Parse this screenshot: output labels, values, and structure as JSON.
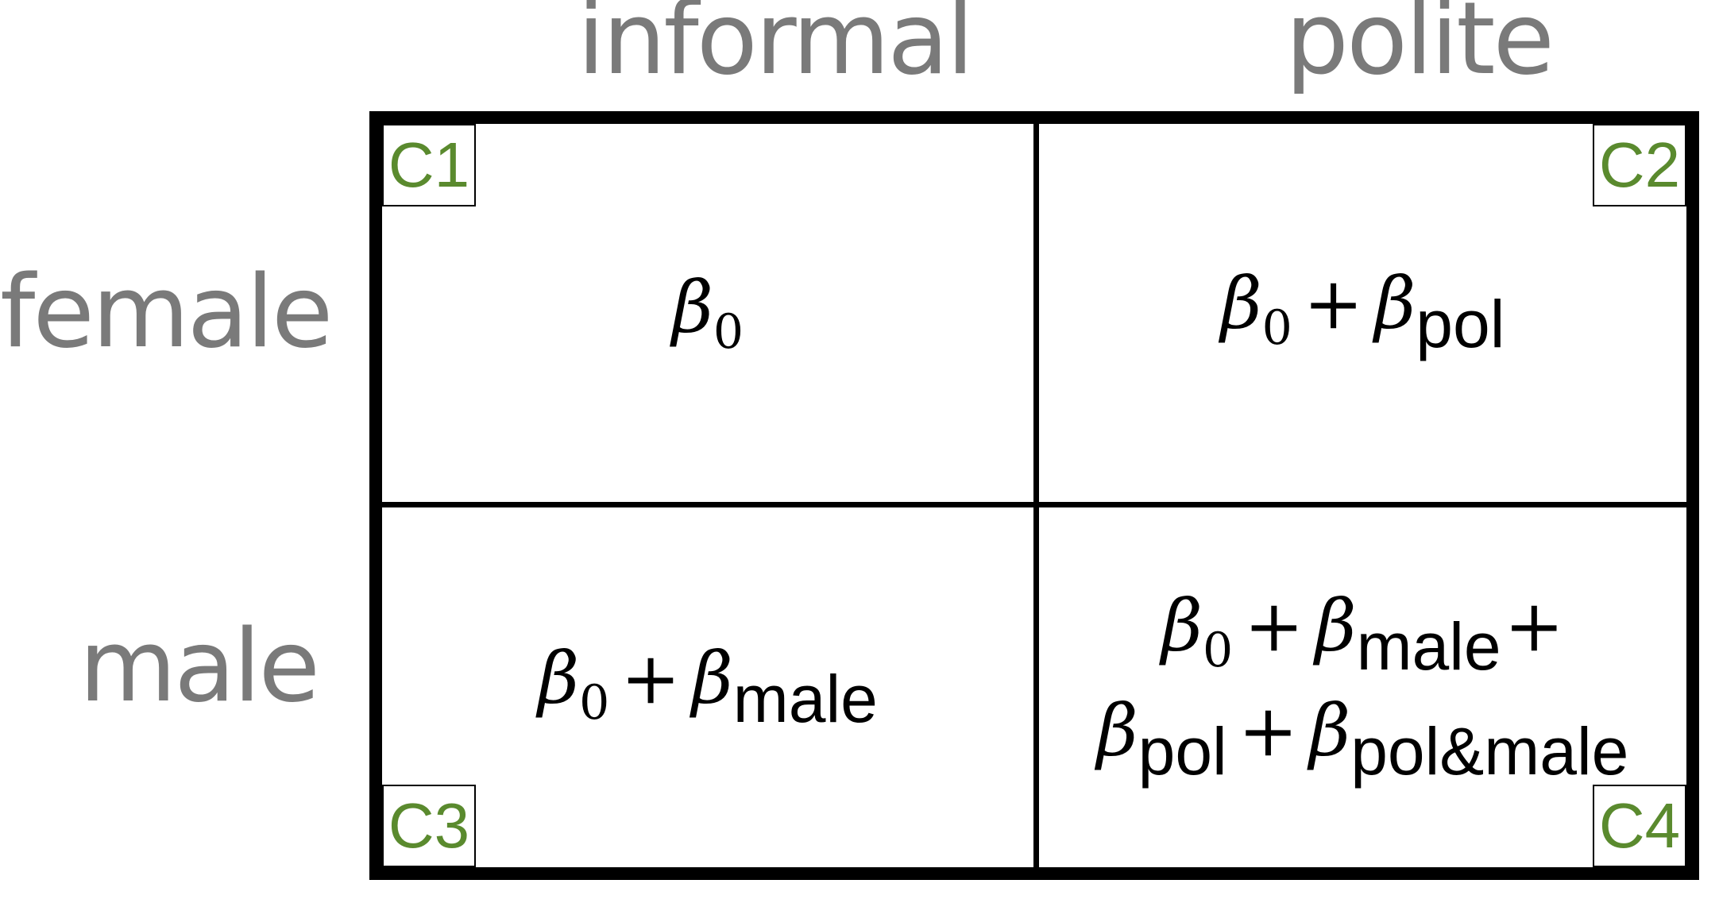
{
  "columns": {
    "informal": "informal",
    "polite": "polite"
  },
  "rows": {
    "female": "female",
    "male": "male"
  },
  "symbols": {
    "beta": "β",
    "zero": "0",
    "plus": "+"
  },
  "subscripts": {
    "pol": "pol",
    "male": "male",
    "pol_male": "pol&male"
  },
  "corners": {
    "c1": "C1",
    "c2": "C2",
    "c3": "C3",
    "c4": "C4"
  },
  "colors": {
    "header_text": "#7a7a7a",
    "corner_label": "#5a8a2e",
    "grid_line": "#000000"
  }
}
